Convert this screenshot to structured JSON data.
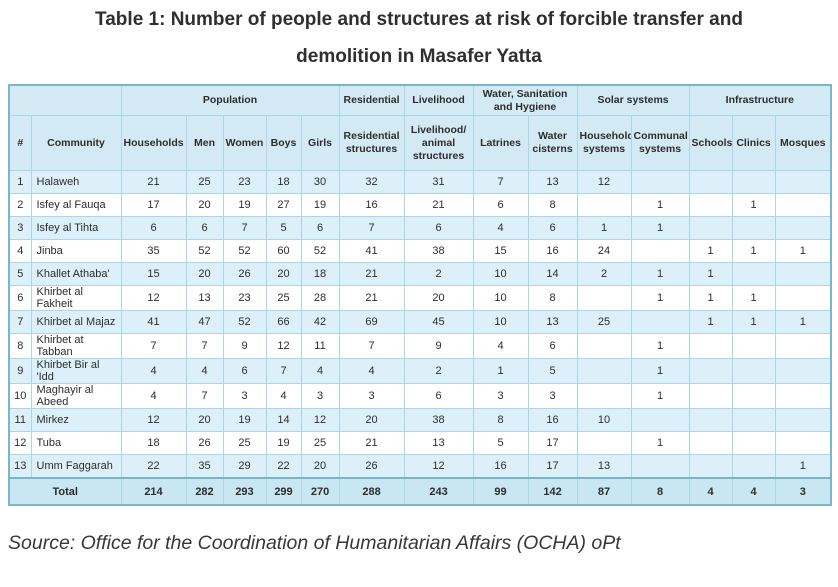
{
  "title_line1": "Table 1: Number of people and structures at risk of forcible transfer and",
  "title_line2": "demolition in Masafer Yatta",
  "source_note": "Source: Office for the Coordination of Humanitarian Affairs (OCHA) oPt",
  "colors": {
    "header_bg": "#d3eaf5",
    "row_alt_bg": "#ddf0f9",
    "row_bg": "#ffffff",
    "total_bg": "#c9e6f3",
    "cell_border": "#a8d8e8",
    "outer_border": "#79b6cc",
    "text": "#2d2d2d"
  },
  "chart_data": {
    "type": "table",
    "column_groups": [
      {
        "label": "",
        "span": 2
      },
      {
        "label": "Population",
        "span": 5
      },
      {
        "label": "Residential",
        "span": 1
      },
      {
        "label": "Livelihood",
        "span": 1
      },
      {
        "label": "Water, Sanitation and Hygiene",
        "span": 2
      },
      {
        "label": "Solar systems",
        "span": 2
      },
      {
        "label": "Infrastructure",
        "span": 3
      }
    ],
    "columns": [
      "#",
      "Community",
      "Households",
      "Men",
      "Women",
      "Boys",
      "Girls",
      "Residential structures",
      "Livelihood/ animal structures",
      "Latrines",
      "Water cisterns",
      "Household systems",
      "Communal systems",
      "Schools",
      "Clinics",
      "Mosques"
    ],
    "rows": [
      [
        "1",
        "Halaweh",
        21,
        25,
        23,
        18,
        30,
        32,
        31,
        7,
        13,
        12,
        "",
        "",
        "",
        ""
      ],
      [
        "2",
        "Isfey al Fauqa",
        17,
        20,
        19,
        27,
        19,
        16,
        21,
        6,
        8,
        "",
        1,
        "",
        1,
        ""
      ],
      [
        "3",
        "Isfey al Tihta",
        6,
        6,
        7,
        5,
        6,
        7,
        6,
        4,
        6,
        1,
        1,
        "",
        "",
        ""
      ],
      [
        "4",
        "Jinba",
        35,
        52,
        52,
        60,
        52,
        41,
        38,
        15,
        16,
        24,
        "",
        1,
        1,
        1
      ],
      [
        "5",
        "Khallet Athaba'",
        15,
        20,
        26,
        20,
        18,
        21,
        2,
        10,
        14,
        2,
        1,
        1,
        "",
        ""
      ],
      [
        "6",
        "Khirbet al Fakheit",
        12,
        13,
        23,
        25,
        28,
        21,
        20,
        10,
        8,
        "",
        1,
        1,
        1,
        ""
      ],
      [
        "7",
        "Khirbet al Majaz",
        41,
        47,
        52,
        66,
        42,
        69,
        45,
        10,
        13,
        25,
        "",
        1,
        1,
        1
      ],
      [
        "8",
        "Khirbet at Tabban",
        7,
        7,
        9,
        12,
        11,
        7,
        9,
        4,
        6,
        "",
        1,
        "",
        "",
        ""
      ],
      [
        "9",
        "Khirbet Bir al 'Idd",
        4,
        4,
        6,
        7,
        4,
        4,
        2,
        1,
        5,
        "",
        1,
        "",
        "",
        ""
      ],
      [
        "10",
        "Maghayir al Abeed",
        4,
        7,
        3,
        4,
        3,
        3,
        6,
        3,
        3,
        "",
        1,
        "",
        "",
        ""
      ],
      [
        "11",
        "Mirkez",
        12,
        20,
        19,
        14,
        12,
        20,
        38,
        8,
        16,
        10,
        "",
        "",
        "",
        ""
      ],
      [
        "12",
        "Tuba",
        18,
        26,
        25,
        19,
        25,
        21,
        13,
        5,
        17,
        "",
        1,
        "",
        "",
        ""
      ],
      [
        "13",
        "Umm Faggarah",
        22,
        35,
        29,
        22,
        20,
        26,
        12,
        16,
        17,
        13,
        "",
        "",
        "",
        1
      ]
    ],
    "total_row": {
      "label": "Total",
      "values": [
        214,
        282,
        293,
        299,
        270,
        288,
        243,
        99,
        142,
        87,
        8,
        4,
        4,
        3
      ]
    }
  }
}
